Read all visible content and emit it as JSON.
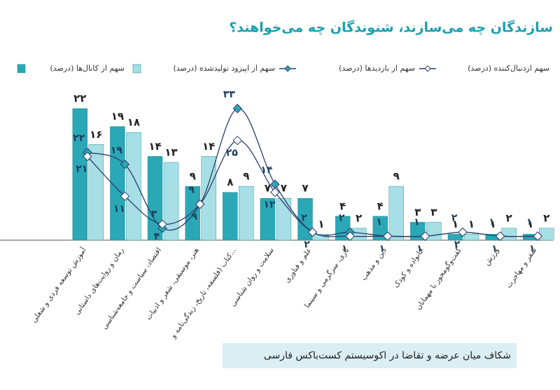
{
  "chart_data": {
    "type": "bar-line",
    "title": "سازندگان چه می‌سازند، شنوندگان چه می‌خواهند؟",
    "caption": "شکاف میان عرضه و تقاضا در اکوسیستم کست‌باکس فارسی",
    "categories": [
      "آموزش توسعه فردی و شغلی",
      "رمان و روایت‌های داستانی",
      "اقتصاد، سیاست و جامعه‌شناسی",
      "هنر، موسیقی، شعر و ادبیات",
      "کتاب (فلسفه، تاریخ، زندگی‌نامه و...",
      "سلامت و روان شناسی",
      "علم و فناوری",
      "بازی، سرگرمی و سینما",
      "دین و مذهب",
      "خانواده و کودک",
      "گفت‌وگومحور با مهمانان",
      "ورزش",
      "سفر و مهاجرت"
    ],
    "series": [
      {
        "name": "سهم از کانال‌ها (درصد)",
        "kind": "bar",
        "color": "#2aa8b6",
        "values": [
          22,
          19,
          14,
          9,
          8,
          7,
          7,
          4,
          4,
          3,
          1,
          1,
          1
        ],
        "value_labels": [
          "۲۲",
          "۱۹",
          "۱۴",
          "۹",
          "۸",
          "۷",
          "۷",
          "۴",
          "۴",
          "۳",
          "۱",
          "۱",
          "۱"
        ]
      },
      {
        "name": "سهم از اپیزود تولیدشده (درصد)",
        "kind": "bar",
        "color": "#a6dfe5",
        "values": [
          16,
          18,
          13,
          14,
          9,
          7,
          1,
          2,
          9,
          3,
          1,
          2,
          2
        ],
        "value_labels": [
          "۱۶",
          "۱۸",
          "۱۳",
          "۱۴",
          "۹",
          "۷",
          "۱",
          "۲",
          "۹",
          "۳",
          "۱",
          "۲",
          "۲"
        ]
      },
      {
        "name": "سهم از بازدیدها (درصد)",
        "kind": "line",
        "color": "#2d3e6b",
        "marker": "#2aa8b6",
        "values": [
          22,
          19,
          3,
          9,
          33,
          14,
          2,
          2,
          1,
          1,
          2,
          1,
          1
        ],
        "value_labels": [
          "۲۲",
          "۱۹",
          "۳",
          "۹",
          "۳۳",
          "۱۴",
          "۲",
          "۲",
          "۱",
          "۱",
          "۲",
          "۱",
          "۱"
        ]
      },
      {
        "name": "سهم ازدنبال‌کننده (درصد)",
        "kind": "line",
        "color": "#2d3e6b",
        "marker": "#ffffff",
        "values": [
          21,
          11,
          4,
          9,
          25,
          12,
          2,
          1,
          1,
          1,
          2,
          1,
          1
        ],
        "value_labels": [
          "۲۱",
          "۱۱",
          "۴",
          "۹",
          "۲۵",
          "۱۲",
          "۲",
          "۱",
          "۱",
          "۱",
          "۲",
          "۱",
          "۱"
        ]
      }
    ]
  }
}
